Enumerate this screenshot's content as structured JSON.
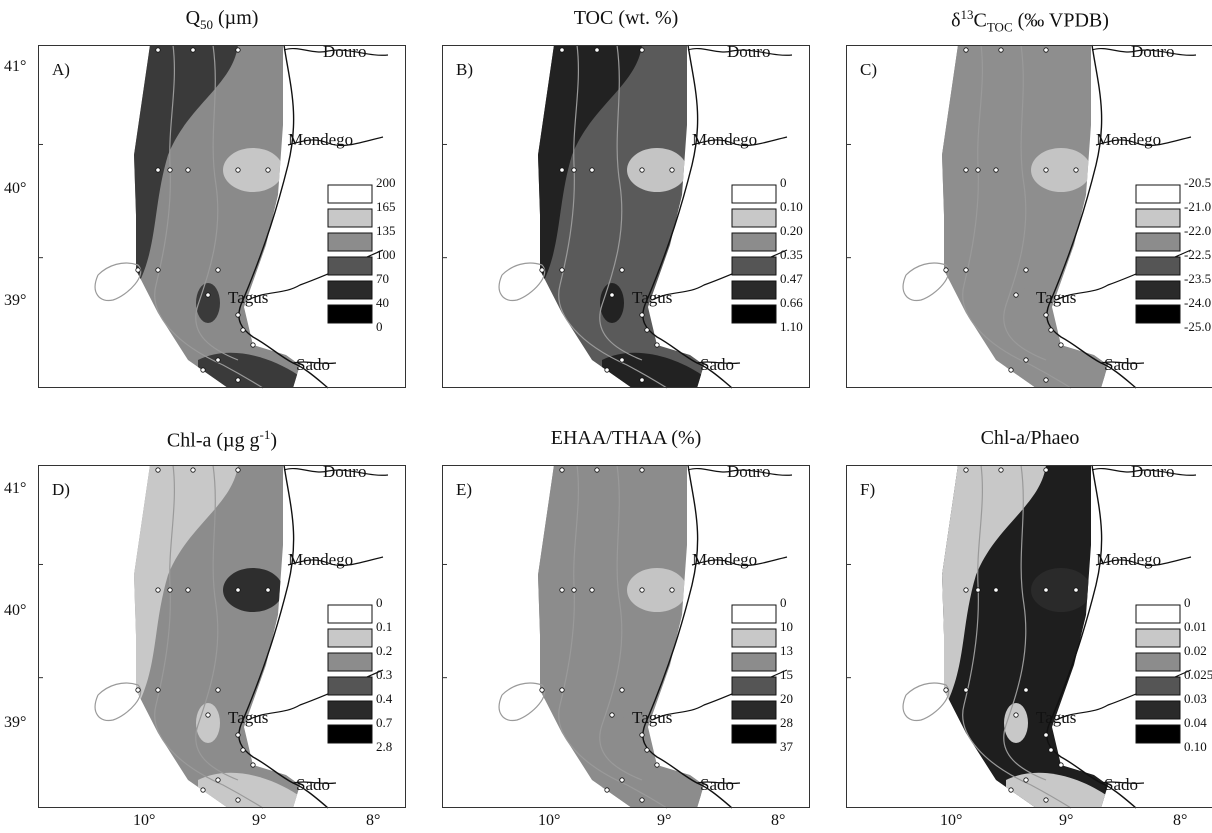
{
  "panels": [
    {
      "id": "A",
      "title_html": "Q<sub>50</sub> (µm)",
      "title_main": "Q",
      "title_sub": "50",
      "title_tail": " (µm)",
      "letter": "A)",
      "legend": [
        "200",
        "165",
        "135",
        "100",
        "70",
        "40",
        "0"
      ],
      "shades": [
        "#ffffff",
        "#c8c8c8",
        "#8c8c8c",
        "#555555",
        "#2a2a2a",
        "#000000"
      ],
      "fill": [
        "#3a3a3a",
        "#8a8a8a",
        "#c6c6c6"
      ]
    },
    {
      "id": "B",
      "title_main": "TOC (wt. %)",
      "title_sub": "",
      "title_tail": "",
      "letter": "B)",
      "legend": [
        "0",
        "0.10",
        "0.20",
        "0.35",
        "0.47",
        "0.66",
        "1.10"
      ],
      "shades": [
        "#ffffff",
        "#c8c8c8",
        "#8c8c8c",
        "#555555",
        "#2a2a2a",
        "#000000"
      ],
      "fill": [
        "#222222",
        "#5a5a5a",
        "#c4c4c4"
      ]
    },
    {
      "id": "C",
      "title_main": "δ",
      "title_sup": "13",
      "title_main2": "C",
      "title_sub": "TOC",
      "title_tail": " (‰ VPDB)",
      "letter": "C)",
      "legend": [
        "-20.5",
        "-21.0",
        "-22.0",
        "-22.5",
        "-23.5",
        "-24.0",
        "-25.0"
      ],
      "shades": [
        "#ffffff",
        "#c8c8c8",
        "#8c8c8c",
        "#555555",
        "#2a2a2a",
        "#000000"
      ],
      "fill": [
        "#8e8e8e",
        "#8e8e8e",
        "#c4c4c4"
      ]
    },
    {
      "id": "D",
      "title_main": "Chl-a (µg g",
      "title_sup": "-1",
      "title_tail": ")",
      "letter": "D)",
      "legend": [
        "0",
        "0.1",
        "0.2",
        "0.3",
        "0.4",
        "0.7",
        "2.8"
      ],
      "shades": [
        "#ffffff",
        "#c8c8c8",
        "#8c8c8c",
        "#555555",
        "#2a2a2a",
        "#000000"
      ],
      "fill": [
        "#c8c8c8",
        "#8c8c8c",
        "#2e2e2e"
      ]
    },
    {
      "id": "E",
      "title_main": "EHAA/THAA (%)",
      "title_sub": "",
      "title_tail": "",
      "letter": "E)",
      "legend": [
        "0",
        "10",
        "13",
        "15",
        "20",
        "28",
        "37"
      ],
      "shades": [
        "#ffffff",
        "#c8c8c8",
        "#8c8c8c",
        "#555555",
        "#2a2a2a",
        "#000000"
      ],
      "fill": [
        "#8c8c8c",
        "#8c8c8c",
        "#c4c4c4"
      ]
    },
    {
      "id": "F",
      "title_main": "Chl-a/Phaeo",
      "title_sub": "",
      "title_tail": "",
      "letter": "F)",
      "legend": [
        "0",
        "0.01",
        "0.02",
        "0.025",
        "0.03",
        "0.04",
        "0.10"
      ],
      "shades": [
        "#ffffff",
        "#c8c8c8",
        "#8c8c8c",
        "#555555",
        "#2a2a2a",
        "#000000"
      ],
      "fill": [
        "#c8c8c8",
        "#1e1e1e",
        "#2a2a2a"
      ]
    }
  ],
  "places": {
    "douro": "Douro",
    "mondego": "Mondego",
    "tagus": "Tagus",
    "sado": "Sado"
  },
  "lat_labels": [
    "41°",
    "40°",
    "39°"
  ],
  "lon_labels": [
    "10°",
    "9°",
    "8°"
  ]
}
